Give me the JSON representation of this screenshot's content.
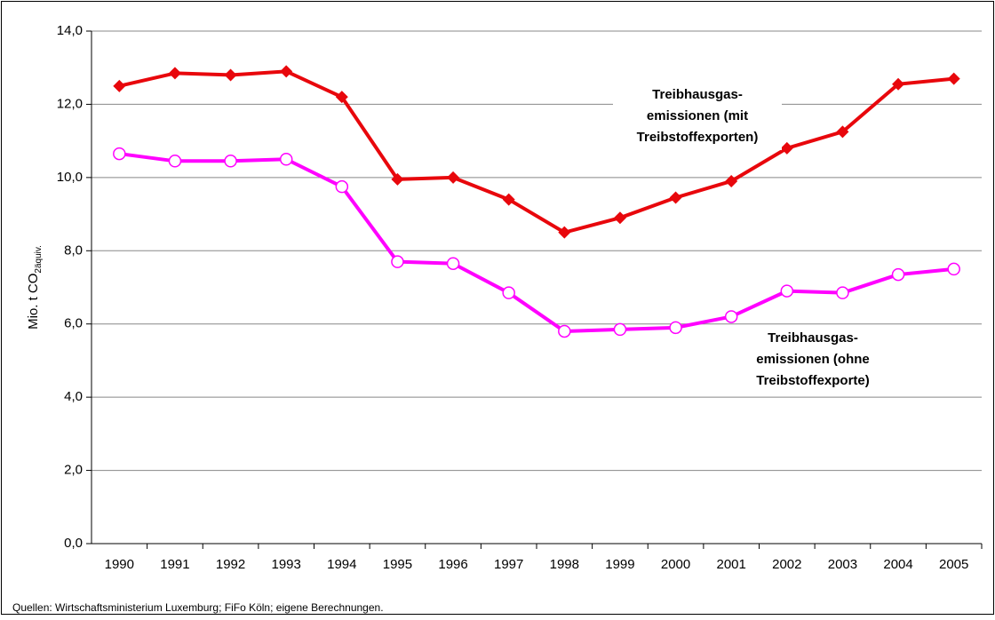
{
  "chart_data": {
    "type": "line",
    "y_label": "Mio. t CO",
    "y_label_sub": "2äquiv.",
    "categories": [
      "1990",
      "1991",
      "1992",
      "1993",
      "1994",
      "1995",
      "1996",
      "1997",
      "1998",
      "1999",
      "2000",
      "2001",
      "2002",
      "2003",
      "2004",
      "2005"
    ],
    "series": [
      {
        "name": [
          "Treibhausgas-",
          "emissionen (mit",
          "Treibstoffexporten)"
        ],
        "color": "#e8070c",
        "marker": "diamond",
        "values": [
          12.5,
          12.85,
          12.8,
          12.9,
          12.2,
          9.95,
          10.0,
          9.4,
          8.5,
          8.9,
          9.45,
          9.9,
          10.8,
          11.25,
          12.55,
          12.7
        ]
      },
      {
        "name": [
          "Treibhausgas-",
          "emissionen (ohne",
          "Treibstoffexporte)"
        ],
        "color": "#ff00ff",
        "marker": "circle",
        "values": [
          10.65,
          10.45,
          10.45,
          10.5,
          9.75,
          7.7,
          7.65,
          6.85,
          5.8,
          5.85,
          5.9,
          6.2,
          6.9,
          6.85,
          7.35,
          7.5
        ]
      }
    ],
    "ylim": [
      0,
      14
    ],
    "yticks": [
      {
        "value": 0,
        "label": "0,0"
      },
      {
        "value": 2,
        "label": "2,0"
      },
      {
        "value": 4,
        "label": "4,0"
      },
      {
        "value": 6,
        "label": "6,0"
      },
      {
        "value": 8,
        "label": "8,0"
      },
      {
        "value": 10,
        "label": "10,0"
      },
      {
        "value": 12,
        "label": "12,0"
      },
      {
        "value": 14,
        "label": "14,0"
      }
    ],
    "grid": true,
    "source": "Quellen: Wirtschaftsministerium Luxemburg; FiFo Köln; eigene Berechnungen."
  }
}
